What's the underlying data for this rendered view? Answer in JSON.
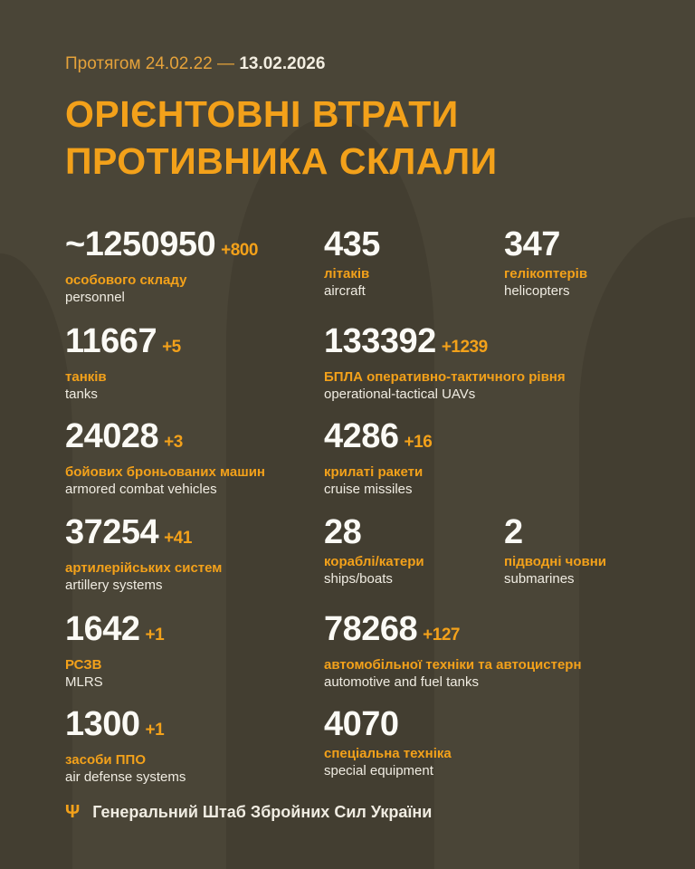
{
  "header": {
    "period_prefix": "Протягом 24.02.22 —",
    "period_end": "13.02.2026",
    "title_line1": "ОРІЄНТОВНІ ВТРАТИ",
    "title_line2": "ПРОТИВНИКА СКЛАЛИ"
  },
  "stats": [
    {
      "value": "~1250950",
      "delta": "+800",
      "ua": "особового складу",
      "en": "personnel"
    },
    {
      "value": "435",
      "delta": "",
      "ua": "літаків",
      "en": "aircraft"
    },
    {
      "value": "347",
      "delta": "",
      "ua": "гелікоптерів",
      "en": "helicopters"
    },
    {
      "value": "11667",
      "delta": "+5",
      "ua": "танків",
      "en": "tanks"
    },
    {
      "value": "133392",
      "delta": "+1239",
      "ua": "БПЛА оперативно-тактичного рівня",
      "en": "operational-tactical UAVs"
    },
    {
      "value": "24028",
      "delta": "+3",
      "ua": "бойових броньованих машин",
      "en": "armored combat vehicles"
    },
    {
      "value": "4286",
      "delta": "+16",
      "ua": "крилаті ракети",
      "en": "cruise missiles"
    },
    {
      "value": "37254",
      "delta": "+41",
      "ua": "артилерійських систем",
      "en": "artillery systems"
    },
    {
      "value": "28",
      "delta": "",
      "ua": "кораблі/катери",
      "en": "ships/boats"
    },
    {
      "value": "2",
      "delta": "",
      "ua": "підводні човни",
      "en": "submarines"
    },
    {
      "value": "1642",
      "delta": "+1",
      "ua": "РСЗВ",
      "en": "MLRS"
    },
    {
      "value": "78268",
      "delta": "+127",
      "ua": "автомобільної техніки та автоцистерн",
      "en": "automotive and fuel tanks"
    },
    {
      "value": "1300",
      "delta": "+1",
      "ua": "засоби ППО",
      "en": "air defense systems"
    },
    {
      "value": "4070",
      "delta": "",
      "ua": "спеціальна техніка",
      "en": "special equipment"
    }
  ],
  "footer": {
    "icon": "trident-icon",
    "text": "Генеральний Штаб Збройних Сил України"
  },
  "colors": {
    "background": "#4a4537",
    "accent": "#f3a11a",
    "text": "#fbfaf5"
  }
}
